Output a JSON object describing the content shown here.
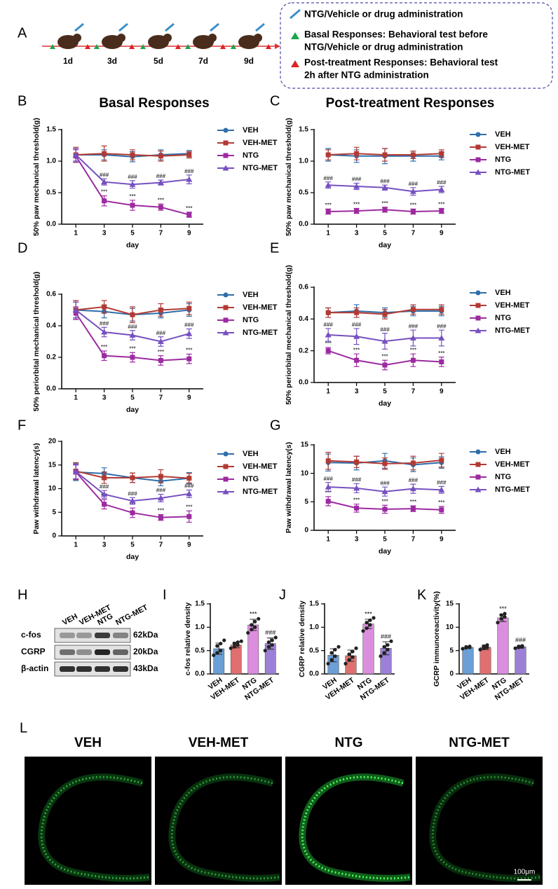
{
  "panel_a": {
    "label": "A",
    "days": [
      "1d",
      "3d",
      "5d",
      "7d",
      "9d"
    ],
    "legend": [
      [
        "NTG/Vehicle or drug administration"
      ],
      [
        "Basal Responses:  Behavioral test before",
        "NTG/Vehicle or drug administration"
      ],
      [
        "Post-treatment Responses: Behavioral test",
        " 2h after NTG administration"
      ]
    ]
  },
  "chart_data": [
    {
      "type": "line",
      "panel": "B",
      "title": "Basal Responses",
      "xlabel": "day",
      "ylabel": "50% paw mechanical threshold(g)",
      "x": [
        1,
        3,
        5,
        7,
        9
      ],
      "xlim": [
        0,
        10
      ],
      "xticks": [
        1,
        3,
        5,
        7,
        9
      ],
      "ylim": [
        0,
        1.5
      ],
      "yticks": [
        {
          "value": 0,
          "label": "0.0"
        },
        0.5,
        {
          "value": 1,
          "label": "1.0"
        },
        1.5
      ],
      "series": [
        {
          "name": "VEH",
          "color": "#2f6eaa",
          "marker": "circle",
          "values": [
            1.1,
            1.1,
            1.07,
            1.1,
            1.12
          ],
          "errors": [
            0.1,
            0.08,
            0.08,
            0.08,
            0.05
          ],
          "annotations": [
            null,
            null,
            null,
            null,
            null
          ]
        },
        {
          "name": "VEH-MET",
          "color": "#b23a34",
          "marker": "square",
          "values": [
            1.1,
            1.12,
            1.1,
            1.08,
            1.1
          ],
          "errors": [
            0.12,
            0.12,
            0.08,
            0.08,
            0.05
          ],
          "annotations": [
            null,
            null,
            null,
            null,
            null
          ]
        },
        {
          "name": "NTG",
          "color": "#9c2aa0",
          "marker": "square",
          "values": [
            1.08,
            0.37,
            0.3,
            0.27,
            0.15
          ],
          "errors": [
            0.1,
            0.08,
            0.08,
            0.05,
            0.04
          ],
          "annotations": [
            null,
            "***",
            "***",
            "***",
            "***"
          ]
        },
        {
          "name": "NTG-MET",
          "color": "#7650c0",
          "marker": "triangle",
          "values": [
            1.1,
            0.67,
            0.63,
            0.66,
            0.71
          ],
          "errors": [
            0.1,
            0.05,
            0.06,
            0.04,
            0.07
          ],
          "annotations": [
            null,
            "###",
            "###",
            "###",
            "###"
          ]
        }
      ]
    },
    {
      "type": "line",
      "panel": "C",
      "title": "Post-treatment Responses",
      "xlabel": "day",
      "ylabel": "50% paw mechanical threshold(g)",
      "x": [
        1,
        3,
        5,
        7,
        9
      ],
      "xlim": [
        0,
        10
      ],
      "xticks": [
        1,
        3,
        5,
        7,
        9
      ],
      "ylim": [
        0,
        1.5
      ],
      "yticks": [
        {
          "value": 0,
          "label": "0.0"
        },
        0.5,
        {
          "value": 1,
          "label": "1.0"
        },
        1.5
      ],
      "series": [
        {
          "name": "VEH",
          "color": "#2f6eaa",
          "marker": "circle",
          "values": [
            1.1,
            1.08,
            1.08,
            1.08,
            1.08
          ],
          "errors": [
            0.1,
            0.1,
            0.12,
            0.08,
            0.06
          ],
          "annotations": [
            null,
            null,
            null,
            null,
            null
          ]
        },
        {
          "name": "VEH-MET",
          "color": "#b23a34",
          "marker": "square",
          "values": [
            1.1,
            1.12,
            1.1,
            1.1,
            1.12
          ],
          "errors": [
            0.08,
            0.1,
            0.1,
            0.06,
            0.06
          ],
          "annotations": [
            null,
            null,
            null,
            null,
            null
          ]
        },
        {
          "name": "NTG",
          "color": "#9c2aa0",
          "marker": "square",
          "values": [
            0.2,
            0.21,
            0.23,
            0.2,
            0.21
          ],
          "errors": [
            0.04,
            0.04,
            0.04,
            0.04,
            0.04
          ],
          "annotations": [
            "***",
            "***",
            "***",
            "***",
            "***"
          ]
        },
        {
          "name": "NTG-MET",
          "color": "#7650c0",
          "marker": "triangle",
          "values": [
            0.62,
            0.6,
            0.58,
            0.52,
            0.55
          ],
          "errors": [
            0.05,
            0.05,
            0.04,
            0.06,
            0.05
          ],
          "annotations": [
            "###",
            "###",
            "###",
            "###",
            "###"
          ]
        }
      ]
    },
    {
      "type": "line",
      "panel": "D",
      "xlabel": "day",
      "ylabel": "50% periorbital mechanical threshold(g)",
      "x": [
        1,
        3,
        5,
        7,
        9
      ],
      "xlim": [
        0,
        10
      ],
      "xticks": [
        1,
        3,
        5,
        7,
        9
      ],
      "ylim": [
        0,
        0.6
      ],
      "yticks": [
        {
          "value": 0,
          "label": "0.0"
        },
        0.2,
        0.4,
        0.6
      ],
      "series": [
        {
          "name": "VEH",
          "color": "#2f6eaa",
          "marker": "circle",
          "values": [
            0.5,
            0.49,
            0.47,
            0.48,
            0.5
          ],
          "errors": [
            0.05,
            0.04,
            0.04,
            0.03,
            0.04
          ],
          "annotations": [
            null,
            null,
            null,
            null,
            null
          ]
        },
        {
          "name": "VEH-MET",
          "color": "#b23a34",
          "marker": "square",
          "values": [
            0.5,
            0.52,
            0.47,
            0.5,
            0.51
          ],
          "errors": [
            0.06,
            0.04,
            0.05,
            0.04,
            0.04
          ],
          "annotations": [
            null,
            null,
            null,
            null,
            null
          ]
        },
        {
          "name": "NTG",
          "color": "#9c2aa0",
          "marker": "square",
          "values": [
            0.48,
            0.21,
            0.2,
            0.18,
            0.19
          ],
          "errors": [
            0.04,
            0.03,
            0.03,
            0.03,
            0.03
          ],
          "annotations": [
            null,
            "***",
            "***",
            "***",
            "***"
          ]
        },
        {
          "name": "NTG-MET",
          "color": "#7650c0",
          "marker": "triangle",
          "values": [
            0.5,
            0.36,
            0.34,
            0.3,
            0.35
          ],
          "errors": [
            0.05,
            0.03,
            0.03,
            0.03,
            0.03
          ],
          "annotations": [
            null,
            "###",
            "###",
            "###",
            "###"
          ]
        }
      ]
    },
    {
      "type": "line",
      "panel": "E",
      "xlabel": "day",
      "ylabel": "50% periorbital mechanical threshold(g)",
      "x": [
        1,
        3,
        5,
        7,
        9
      ],
      "xlim": [
        0,
        10
      ],
      "xticks": [
        1,
        3,
        5,
        7,
        9
      ],
      "ylim": [
        0,
        0.6
      ],
      "yticks": [
        {
          "value": 0,
          "label": "0.0"
        },
        0.2,
        0.4,
        0.6
      ],
      "series": [
        {
          "name": "VEH",
          "color": "#2f6eaa",
          "marker": "circle",
          "values": [
            0.44,
            0.45,
            0.44,
            0.45,
            0.45
          ],
          "errors": [
            0.03,
            0.04,
            0.03,
            0.03,
            0.03
          ],
          "annotations": [
            null,
            null,
            null,
            null,
            null
          ]
        },
        {
          "name": "VEH-MET",
          "color": "#b23a34",
          "marker": "square",
          "values": [
            0.44,
            0.44,
            0.43,
            0.46,
            0.46
          ],
          "errors": [
            0.03,
            0.03,
            0.03,
            0.03,
            0.03
          ],
          "annotations": [
            null,
            null,
            null,
            null,
            null
          ]
        },
        {
          "name": "NTG",
          "color": "#9c2aa0",
          "marker": "square",
          "values": [
            0.2,
            0.14,
            0.11,
            0.14,
            0.13
          ],
          "errors": [
            0.02,
            0.04,
            0.03,
            0.04,
            0.03
          ],
          "annotations": [
            "***",
            "***",
            "***",
            "***",
            "***"
          ]
        },
        {
          "name": "NTG-MET",
          "color": "#7650c0",
          "marker": "triangle",
          "values": [
            0.3,
            0.29,
            0.26,
            0.28,
            0.28
          ],
          "errors": [
            0.04,
            0.05,
            0.05,
            0.05,
            0.05
          ],
          "annotations": [
            "###",
            "###",
            "###",
            "###",
            "###"
          ]
        }
      ]
    },
    {
      "type": "line",
      "panel": "F",
      "xlabel": "day",
      "ylabel": "Paw withdrawal latency(s)",
      "x": [
        1,
        3,
        5,
        7,
        9
      ],
      "xlim": [
        0,
        10
      ],
      "xticks": [
        1,
        3,
        5,
        7,
        9
      ],
      "ylim": [
        0,
        20
      ],
      "yticks": [
        0,
        5,
        10,
        15,
        20
      ],
      "series": [
        {
          "name": "VEH",
          "color": "#2f6eaa",
          "marker": "circle",
          "values": [
            13.5,
            13.2,
            12.3,
            11.6,
            12.2
          ],
          "errors": [
            1.8,
            1.2,
            1,
            1,
            1.2
          ],
          "annotations": [
            null,
            null,
            null,
            null,
            null
          ]
        },
        {
          "name": "VEH-MET",
          "color": "#b23a34",
          "marker": "square",
          "values": [
            13.7,
            12.3,
            12.3,
            12.6,
            12.2
          ],
          "errors": [
            1.8,
            1.2,
            1,
            1.4,
            1
          ],
          "annotations": [
            null,
            null,
            null,
            null,
            null
          ]
        },
        {
          "name": "NTG",
          "color": "#9c2aa0",
          "marker": "square",
          "values": [
            13.5,
            6.7,
            4.9,
            3.9,
            4.1
          ],
          "errors": [
            1.5,
            1,
            1,
            0.6,
            1.2
          ],
          "annotations": [
            null,
            "***",
            "***",
            "***",
            "***"
          ]
        },
        {
          "name": "NTG-MET",
          "color": "#7650c0",
          "marker": "triangle",
          "values": [
            13.6,
            8.8,
            7.4,
            8,
            8.9
          ],
          "errors": [
            1.5,
            0.8,
            0.7,
            0.8,
            0.8
          ],
          "annotations": [
            null,
            "###",
            "###",
            "###",
            "###"
          ]
        }
      ]
    },
    {
      "type": "line",
      "panel": "G",
      "xlabel": "day",
      "ylabel": "Paw withdrawal latency(s)",
      "x": [
        1,
        3,
        5,
        7,
        9
      ],
      "xlim": [
        0,
        10
      ],
      "xticks": [
        1,
        3,
        5,
        7,
        9
      ],
      "ylim": [
        0,
        15
      ],
      "yticks": [
        0,
        5,
        10,
        15
      ],
      "series": [
        {
          "name": "VEH",
          "color": "#2f6eaa",
          "marker": "circle",
          "values": [
            11.9,
            11.8,
            12.2,
            11.5,
            11.9
          ],
          "errors": [
            1.5,
            1.2,
            1.3,
            1.2,
            1
          ],
          "annotations": [
            null,
            null,
            null,
            null,
            null
          ]
        },
        {
          "name": "VEH-MET",
          "color": "#b23a34",
          "marker": "square",
          "values": [
            12.2,
            12,
            11.7,
            11.8,
            12.3
          ],
          "errors": [
            1.5,
            1,
            1,
            1.2,
            1.2
          ],
          "annotations": [
            null,
            null,
            null,
            null,
            null
          ]
        },
        {
          "name": "NTG",
          "color": "#9c2aa0",
          "marker": "square",
          "values": [
            5.1,
            3.9,
            3.7,
            3.8,
            3.6
          ],
          "errors": [
            0.8,
            0.7,
            0.7,
            0.5,
            0.6
          ],
          "annotations": [
            "***",
            "***",
            "***",
            "***",
            "***"
          ]
        },
        {
          "name": "NTG-MET",
          "color": "#7650c0",
          "marker": "triangle",
          "values": [
            7.6,
            7.4,
            6.8,
            7.3,
            7.1
          ],
          "errors": [
            0.8,
            0.8,
            0.8,
            0.8,
            0.6
          ],
          "annotations": [
            "###",
            "###",
            "###",
            "###",
            "###"
          ]
        }
      ]
    },
    {
      "type": "bar",
      "panel": "I",
      "ylabel": "c-fos relative density",
      "categories": [
        "VEH",
        "VEH-MET",
        "NTG",
        "NTG-MET"
      ],
      "colors": [
        "#6b9fd6",
        "#e07070",
        "#dc8ede",
        "#9c80d8"
      ],
      "ylim": [
        0,
        1.5
      ],
      "yticks": [
        {
          "value": 0,
          "label": "0.0"
        },
        0.5,
        {
          "value": 1,
          "label": "1.0"
        },
        1.5
      ],
      "values": [
        0.54,
        0.62,
        1.05,
        0.65
      ],
      "errors": [
        0.12,
        0.06,
        0.12,
        0.12
      ],
      "annotations": [
        null,
        null,
        "***",
        "###"
      ],
      "points": [
        [
          0.4,
          0.45,
          0.5,
          0.6,
          0.65,
          0.72
        ],
        [
          0.55,
          0.58,
          0.62,
          0.65,
          0.68,
          0.7
        ],
        [
          0.88,
          0.95,
          1,
          1.05,
          1.12,
          1.18
        ],
        [
          0.5,
          0.58,
          0.62,
          0.68,
          0.72,
          0.78
        ]
      ]
    },
    {
      "type": "bar",
      "panel": "J",
      "ylabel": "CGRP relative density",
      "categories": [
        "VEH",
        "VEH-MET",
        "NTG",
        "NTG-MET"
      ],
      "colors": [
        "#6b9fd6",
        "#e07070",
        "#dc8ede",
        "#9c80d8"
      ],
      "ylim": [
        0,
        1.5
      ],
      "yticks": [
        {
          "value": 0,
          "label": "0.0"
        },
        0.5,
        {
          "value": 1,
          "label": "1.0"
        },
        1.5
      ],
      "values": [
        0.4,
        0.39,
        1.07,
        0.55
      ],
      "errors": [
        0.14,
        0.12,
        0.1,
        0.14
      ],
      "annotations": [
        null,
        null,
        "***",
        "###"
      ],
      "points": [
        [
          0.22,
          0.3,
          0.38,
          0.45,
          0.52,
          0.58
        ],
        [
          0.22,
          0.3,
          0.36,
          0.42,
          0.48,
          0.55
        ],
        [
          0.92,
          0.98,
          1.05,
          1.1,
          1.15,
          1.2
        ],
        [
          0.38,
          0.45,
          0.52,
          0.58,
          0.62,
          0.7
        ]
      ]
    },
    {
      "type": "bar",
      "panel": "K",
      "ylabel": "GCRP immunoreactivity(%)",
      "categories": [
        "VEH",
        "VEH-MET",
        "NTG",
        "NTG-MET"
      ],
      "colors": [
        "#6b9fd6",
        "#e07070",
        "#dc8ede",
        "#9c80d8"
      ],
      "ylim": [
        0,
        15
      ],
      "yticks": [
        0,
        5,
        10,
        15
      ],
      "values": [
        5.7,
        5.7,
        12,
        5.8
      ],
      "errors": [
        0.2,
        0.5,
        0.8,
        0.3
      ],
      "annotations": [
        null,
        null,
        "***",
        "###"
      ],
      "points": [
        [
          5.4,
          5.6,
          5.7,
          5.8,
          5.9
        ],
        [
          5.2,
          5.5,
          5.7,
          5.9,
          6.2
        ],
        [
          11,
          11.8,
          12.2,
          12.6,
          12.9
        ],
        [
          5.5,
          5.7,
          5.8,
          5.9,
          6
        ]
      ]
    }
  ],
  "panel_h": {
    "label": "H",
    "lanes": [
      "VEH",
      "VEH-MET",
      "NTG",
      "NTG-MET"
    ],
    "rows": [
      {
        "protein": "c-fos",
        "size": "62kDa"
      },
      {
        "protein": "CGRP",
        "size": "20kDa"
      },
      {
        "protein": "β-actin",
        "size": "43kDa"
      }
    ]
  },
  "panel_l": {
    "label": "L",
    "images": [
      "VEH",
      "VEH-MET",
      "NTG",
      "NTG-MET"
    ],
    "scale_bar": "100μm"
  }
}
